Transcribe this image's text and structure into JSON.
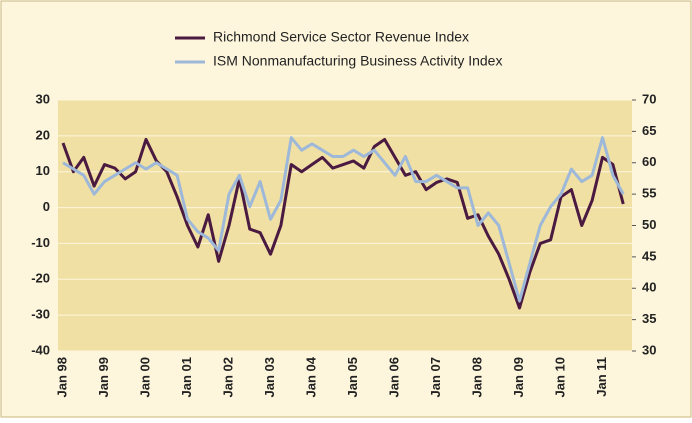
{
  "chart_data": {
    "type": "line",
    "categories": [
      "Jan 98",
      null,
      null,
      null,
      "Jan 99",
      null,
      null,
      null,
      "Jan 00",
      null,
      null,
      null,
      "Jan 01",
      null,
      null,
      null,
      "Jan 02",
      null,
      null,
      null,
      "Jan 03",
      null,
      null,
      null,
      "Jan 04",
      null,
      null,
      null,
      "Jan 05",
      null,
      null,
      null,
      "Jan 06",
      null,
      null,
      null,
      "Jan 07",
      null,
      null,
      null,
      "Jan 08",
      null,
      null,
      null,
      "Jan 09",
      null,
      null,
      null,
      "Jan 10",
      null,
      null,
      null,
      "Jan 11",
      null,
      null
    ],
    "series": [
      {
        "name": "Richmond Service Sector Revenue Index",
        "color": "#4a1a40",
        "values": [
          18,
          10,
          14,
          6,
          12,
          11,
          8,
          10,
          19,
          13,
          10,
          3,
          -5,
          -11,
          -2,
          -15,
          -5,
          8,
          -6,
          -7,
          -13,
          -5,
          12,
          10,
          12,
          14,
          11,
          12,
          13,
          11,
          17,
          19,
          14,
          9,
          10,
          5,
          7,
          8,
          7,
          -3,
          -2,
          -8,
          -13,
          -20,
          -28,
          -18,
          -10,
          -9,
          3,
          5,
          -5,
          2,
          14,
          12,
          1
        ]
      },
      {
        "name": "ISM Nonmanufacturing Business Activity Index",
        "color": "#9db8d8",
        "axis": "y2",
        "values": [
          60,
          59,
          58,
          55,
          57,
          58,
          59,
          60,
          59,
          60,
          59,
          58,
          51,
          49,
          48,
          46,
          55,
          58,
          53,
          57,
          51,
          54,
          64,
          62,
          63,
          62,
          61,
          61,
          62,
          61,
          62,
          60,
          58,
          61,
          57,
          57,
          58,
          57,
          56,
          56,
          50,
          52,
          50,
          44,
          38,
          44,
          50,
          53,
          55,
          59,
          57,
          58,
          64,
          58,
          55
        ]
      }
    ],
    "ylim": [
      -40,
      30
    ],
    "yticks": [
      -40,
      -30,
      -20,
      -10,
      0,
      10,
      20,
      30
    ],
    "y2lim": [
      30,
      70
    ],
    "y2ticks": [
      30,
      35,
      40,
      45,
      50,
      55,
      60,
      65,
      70
    ]
  }
}
